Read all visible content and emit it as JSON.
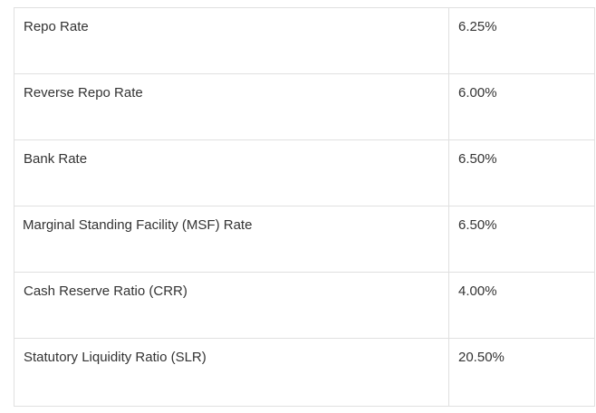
{
  "rates": [
    {
      "name": "Repo Rate",
      "value": "6.25%"
    },
    {
      "name": "Reverse Repo Rate",
      "value": "6.00%"
    },
    {
      "name": "Bank Rate",
      "value": "6.50%"
    },
    {
      "name": "Marginal Standing Facility (MSF) Rate",
      "value": "6.50%"
    },
    {
      "name": "Cash Reserve Ratio (CRR)",
      "value": "4.00%"
    },
    {
      "name": "Statutory Liquidity Ratio (SLR)",
      "value": "20.50%"
    }
  ]
}
